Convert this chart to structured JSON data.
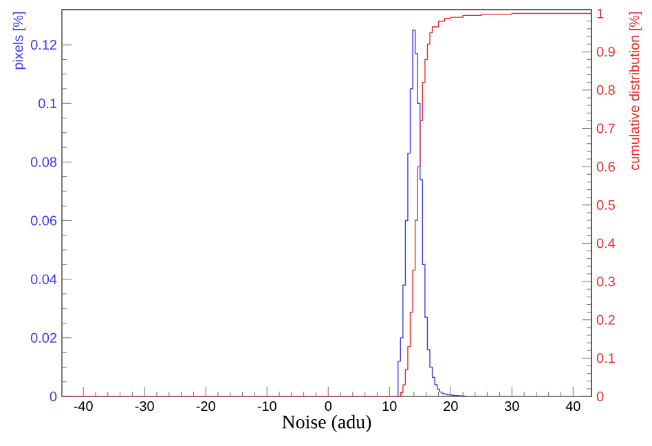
{
  "chart_data": {
    "type": "histogram",
    "xlabel": "Noise (adu)",
    "ylabel": "pixels [%]",
    "y2label": "cumulative distribution [%]",
    "xlim": [
      -43.5,
      43
    ],
    "xticks": [
      -40,
      -30,
      -20,
      -10,
      0,
      10,
      20,
      30,
      40
    ],
    "ylim": [
      0,
      0.132
    ],
    "yticks": [
      0,
      0.02,
      0.04,
      0.06,
      0.08,
      0.1,
      0.12
    ],
    "y2lim": [
      0,
      1.01
    ],
    "y2ticks": [
      0,
      0.1,
      0.2,
      0.3,
      0.4,
      0.5,
      0.6,
      0.7,
      0.8,
      0.9,
      1
    ],
    "grid": false,
    "series": [
      {
        "type": "histogram",
        "color": "#3a3ae8",
        "bins": [
          11.4,
          11.8,
          12.2,
          12.6,
          13.0,
          13.4,
          13.8,
          14.2,
          14.6,
          15.0,
          15.4,
          15.8,
          16.2,
          16.6,
          17.0,
          17.4,
          17.8,
          18.2,
          18.6,
          19.0,
          19.4,
          19.8,
          20.2,
          20.6,
          21.0,
          21.4,
          21.8,
          22.2,
          22.6
        ],
        "values": [
          0.012,
          0.02,
          0.038,
          0.06,
          0.083,
          0.105,
          0.125,
          0.117,
          0.1,
          0.074,
          0.045,
          0.027,
          0.016,
          0.01,
          0.0065,
          0.004,
          0.0025,
          0.0015,
          0.001,
          0.0008,
          0.0006,
          0.0005,
          0.0004,
          0.0003,
          0.0003,
          0.0002,
          0.0002,
          0.0001
        ]
      },
      {
        "type": "step",
        "axis": "y2",
        "color": "#e82a2a",
        "x": [
          -43.5,
          11.8,
          12.2,
          12.6,
          13.0,
          13.4,
          13.8,
          14.2,
          14.6,
          15.0,
          15.4,
          15.8,
          16.2,
          16.6,
          17.0,
          18,
          19,
          20,
          22,
          25,
          30,
          43
        ],
        "values": [
          0,
          0.01,
          0.03,
          0.07,
          0.13,
          0.22,
          0.33,
          0.46,
          0.6,
          0.72,
          0.82,
          0.88,
          0.92,
          0.95,
          0.965,
          0.98,
          0.987,
          0.99,
          0.995,
          0.998,
          1.0,
          1.0
        ]
      }
    ]
  }
}
